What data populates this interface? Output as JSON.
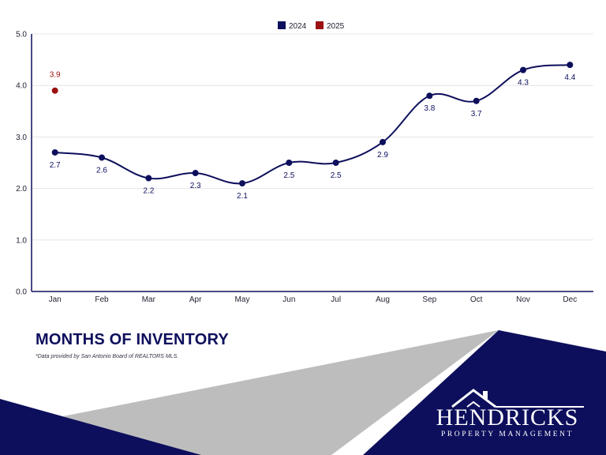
{
  "chart_data": {
    "type": "line",
    "title": "MONTHS OF INVENTORY",
    "note": "*Data provided by San Antonio Board of REALTORS MLS.",
    "categories": [
      "Jan",
      "Feb",
      "Mar",
      "Apr",
      "May",
      "Jun",
      "Jul",
      "Aug",
      "Sep",
      "Oct",
      "Nov",
      "Dec"
    ],
    "series": [
      {
        "name": "2024",
        "color": "#0d0f5c",
        "values": [
          2.7,
          2.6,
          2.2,
          2.3,
          2.1,
          2.5,
          2.5,
          2.9,
          3.8,
          3.7,
          4.3,
          4.4
        ],
        "label_position": "below"
      },
      {
        "name": "2025",
        "color": "#9b1111",
        "values": [
          3.9,
          null,
          null,
          null,
          null,
          null,
          null,
          null,
          null,
          null,
          null,
          null
        ],
        "label_position": "above"
      }
    ],
    "ylim": [
      0,
      5
    ],
    "yticks": [
      "0.0",
      "1.0",
      "2.0",
      "3.0",
      "4.0",
      "5.0"
    ],
    "grid": true,
    "legend": "top-center",
    "smooth": true
  },
  "brand": {
    "name": "HENDRICKS",
    "tagline": "PROPERTY MANAGEMENT",
    "navy": "#0d0f5c",
    "gray": "#bdbdbd"
  }
}
